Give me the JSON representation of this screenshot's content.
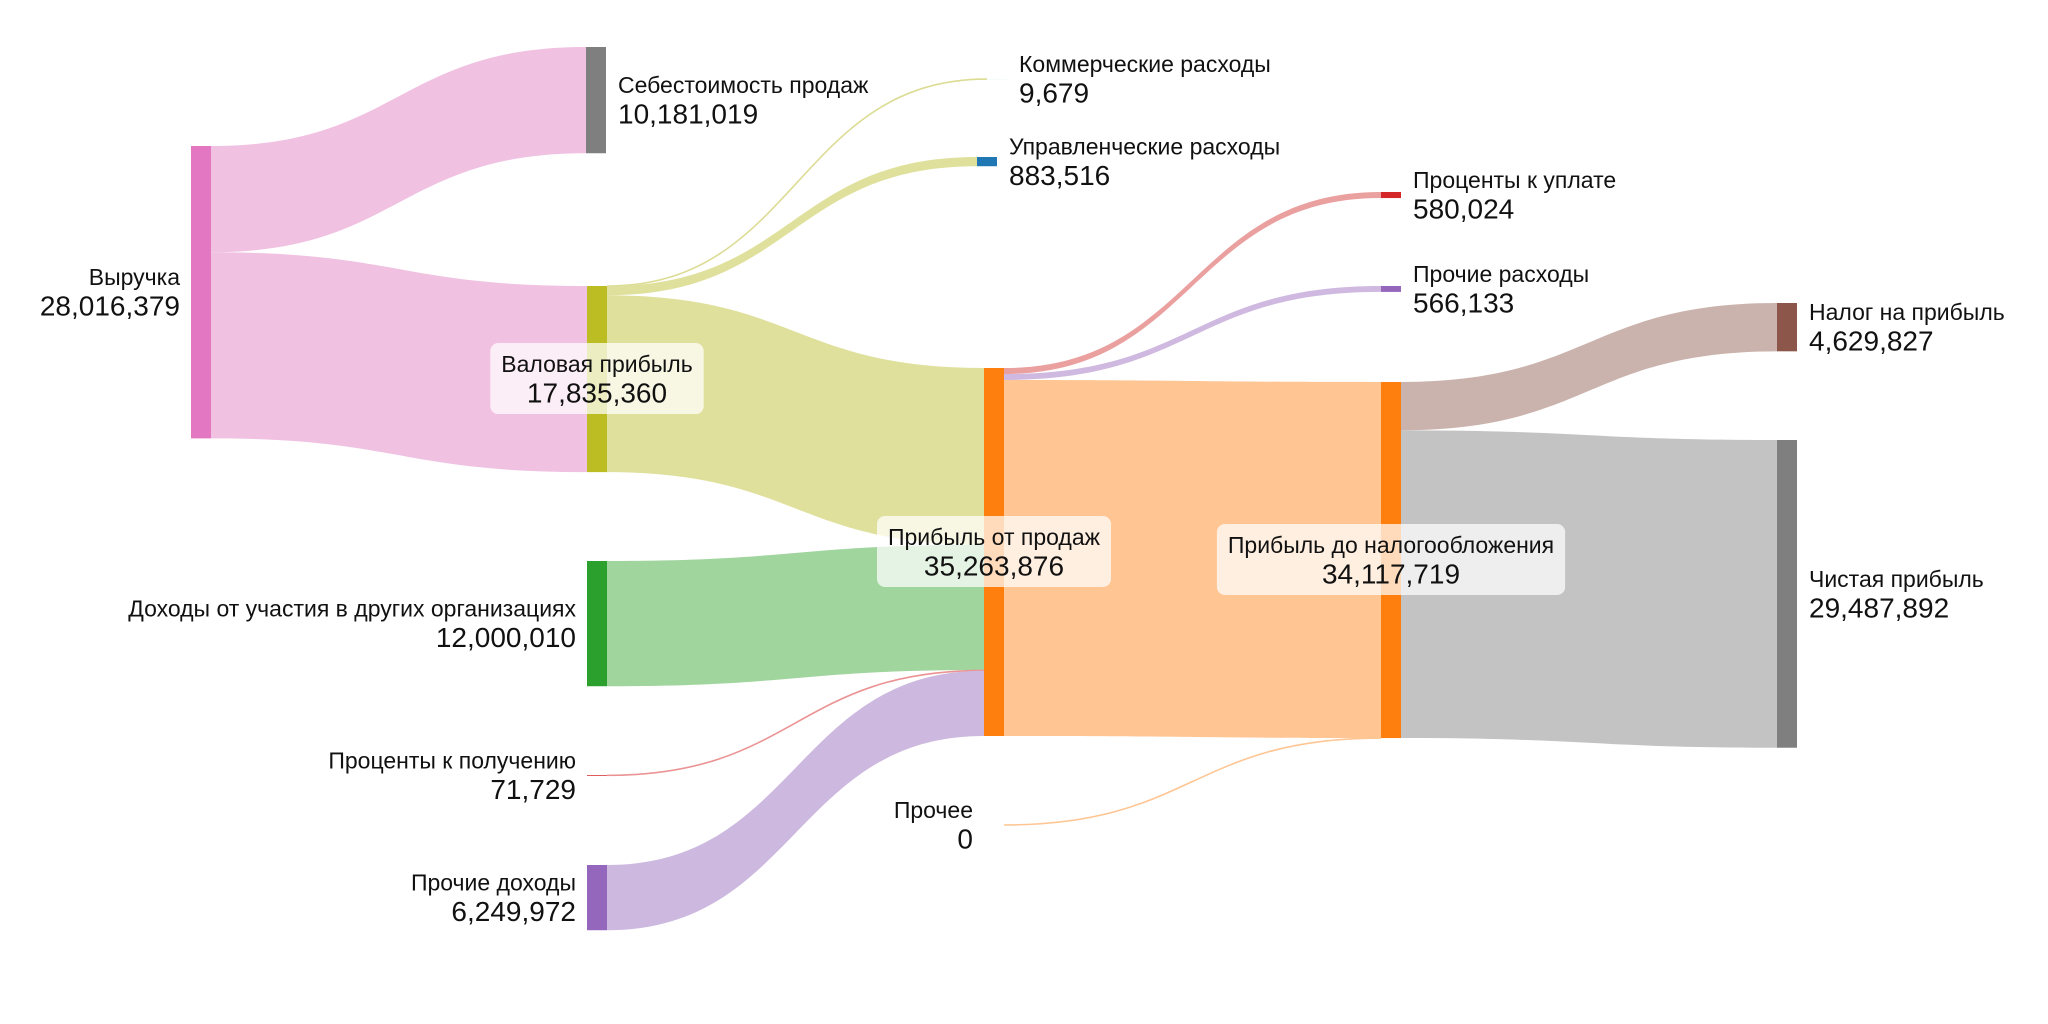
{
  "chart_data": {
    "type": "sankey",
    "title": "",
    "nodes": [
      {
        "id": "revenue",
        "label": "Выручка",
        "value": 28016379,
        "value_label": "28,016,379",
        "color": "#e377c2"
      },
      {
        "id": "cogs",
        "label": "Себестоимость продаж",
        "value": 10181019,
        "value_label": "10,181,019",
        "color": "#7f7f7f"
      },
      {
        "id": "gross",
        "label": "Валовая прибыль",
        "value": 17835360,
        "value_label": "17,835,360",
        "color": "#bcbd22"
      },
      {
        "id": "participation",
        "label": "Доходы от участия в других организациях",
        "value": 12000010,
        "value_label": "12,000,010",
        "color": "#2ca02c"
      },
      {
        "id": "interest_recv",
        "label": "Проценты к получению",
        "value": 71729,
        "value_label": "71,729",
        "color": "#d62728"
      },
      {
        "id": "other_inc",
        "label": "Прочие доходы",
        "value": 6249972,
        "value_label": "6,249,972",
        "color": "#9467bd"
      },
      {
        "id": "commercial",
        "label": "Коммерческие расходы",
        "value": 9679,
        "value_label": "9,679",
        "color": "#9edae5"
      },
      {
        "id": "admin",
        "label": "Управленческие расходы",
        "value": 883516,
        "value_label": "883,516",
        "color": "#1f77b4"
      },
      {
        "id": "op_profit",
        "label": "Прибыль от продаж",
        "value": 35263876,
        "value_label": "35,263,876",
        "color": "#ff7f0e"
      },
      {
        "id": "misc",
        "label": "Прочее",
        "value": 0,
        "value_label": "0",
        "color": "#ff7f0e"
      },
      {
        "id": "interest_pay",
        "label": "Проценты к уплате",
        "value": 580024,
        "value_label": "580,024",
        "color": "#d62728"
      },
      {
        "id": "other_exp",
        "label": "Прочие расходы",
        "value": 566133,
        "value_label": "566,133",
        "color": "#9467bd"
      },
      {
        "id": "pretax",
        "label": "Прибыль до налогообложения",
        "value": 34117719,
        "value_label": "34,117,719",
        "color": "#ff7f0e"
      },
      {
        "id": "tax",
        "label": "Налог на прибыль",
        "value": 4629827,
        "value_label": "4,629,827",
        "color": "#8c564b"
      },
      {
        "id": "net",
        "label": "Чистая прибыль",
        "value": 29487892,
        "value_label": "29,487,892",
        "color": "#7f7f7f"
      }
    ],
    "links": [
      {
        "source": "revenue",
        "target": "cogs",
        "value": 10181019,
        "color": "#f0c1e1"
      },
      {
        "source": "revenue",
        "target": "gross",
        "value": 17835360,
        "color": "#f0c1e1"
      },
      {
        "source": "gross",
        "target": "commercial",
        "value": 9679,
        "color": "#dcdc95"
      },
      {
        "source": "gross",
        "target": "admin",
        "value": 883516,
        "color": "#e0e09d"
      },
      {
        "source": "gross",
        "target": "op_profit",
        "value": 16942165,
        "color": "#e0e09d"
      },
      {
        "source": "participation",
        "target": "op_profit",
        "value": 12000010,
        "color": "#a1d59e"
      },
      {
        "source": "interest_recv",
        "target": "op_profit",
        "value": 71729,
        "color": "#eb9394"
      },
      {
        "source": "other_inc",
        "target": "op_profit",
        "value": 6249972,
        "color": "#cdb9e0"
      },
      {
        "source": "op_profit",
        "target": "interest_pay",
        "value": 580024,
        "color": "#eba0a0"
      },
      {
        "source": "op_profit",
        "target": "other_exp",
        "value": 566133,
        "color": "#cfb9e0"
      },
      {
        "source": "op_profit",
        "target": "pretax",
        "value": 34117719,
        "color": "#ffc593"
      },
      {
        "source": "misc",
        "target": "pretax",
        "value": 0,
        "color": "#ffc593"
      },
      {
        "source": "pretax",
        "target": "tax",
        "value": 4629827,
        "color": "#cbb3ad"
      },
      {
        "source": "pretax",
        "target": "net",
        "value": 29487892,
        "color": "#c3c3c3"
      }
    ]
  }
}
